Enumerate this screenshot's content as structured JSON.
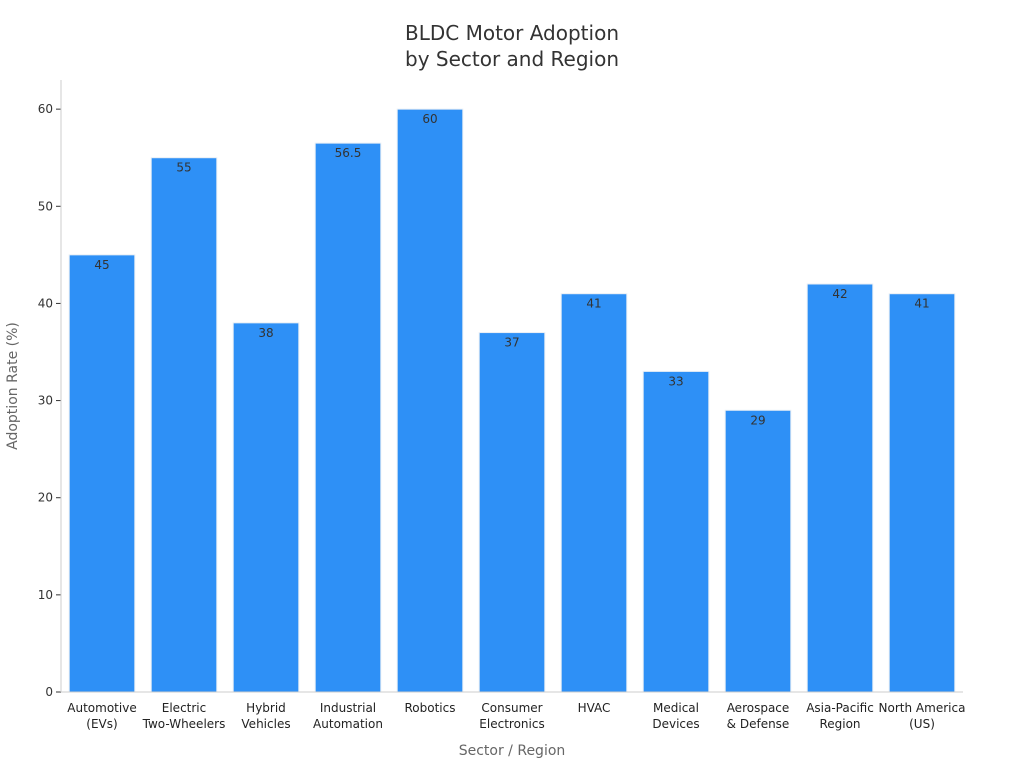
{
  "chart_data": {
    "type": "bar",
    "title_lines": [
      "BLDC Motor Adoption",
      "by Sector and Region"
    ],
    "xlabel": "Sector / Region",
    "ylabel": "Adoption Rate (%)",
    "categories": [
      [
        "Automotive",
        "(EVs)"
      ],
      [
        "Electric",
        "Two-Wheelers"
      ],
      [
        "Hybrid",
        "Vehicles"
      ],
      [
        "Industrial",
        "Automation"
      ],
      [
        "Robotics"
      ],
      [
        "Consumer",
        "Electronics"
      ],
      [
        "HVAC"
      ],
      [
        "Medical",
        "Devices"
      ],
      [
        "Aerospace",
        "& Defense"
      ],
      [
        "Asia-Pacific",
        "Region"
      ],
      [
        "North America",
        "(US)"
      ]
    ],
    "values": [
      45,
      55,
      38,
      56.5,
      60,
      37,
      41,
      33,
      29,
      42,
      41
    ],
    "value_labels": [
      "45",
      "55",
      "38",
      "56.5",
      "60",
      "37",
      "41",
      "33",
      "29",
      "42",
      "41"
    ],
    "yticks": [
      0,
      10,
      20,
      30,
      40,
      50,
      60
    ],
    "ylim": [
      0,
      63
    ],
    "grid": false,
    "legend": "none",
    "colors": {
      "bar": "#2e90f6",
      "bar_edge": "#e8eef5"
    }
  }
}
